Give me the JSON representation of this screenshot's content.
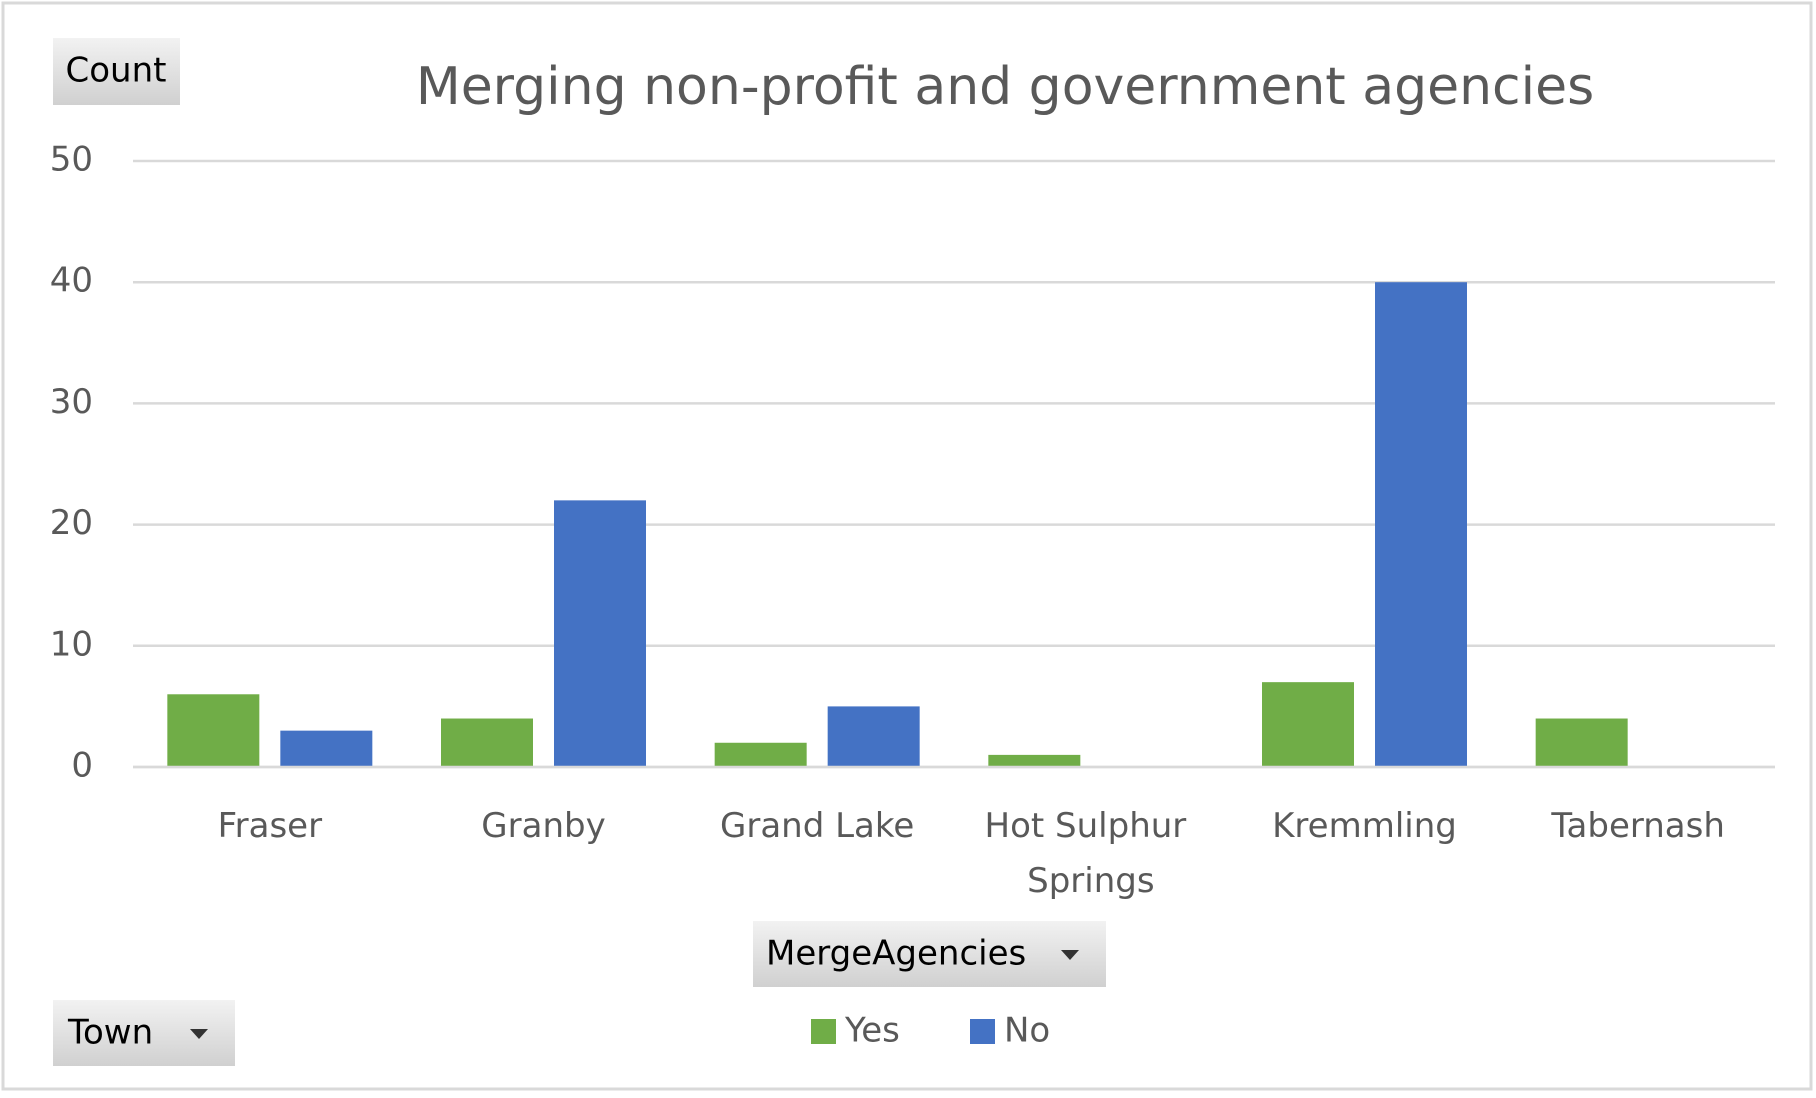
{
  "chart_data": {
    "type": "bar",
    "title": "Merging non-profit and government agencies",
    "y_label": "Count",
    "x_label": "Town",
    "legend_title": "MergeAgencies",
    "categories": [
      "Fraser",
      "Granby",
      "Grand Lake",
      "Hot Sulphur Springs",
      "Kremmling",
      "Tabernash"
    ],
    "series": [
      {
        "name": "Yes",
        "color": "#70ad47",
        "values": [
          6,
          4,
          2,
          1,
          7,
          4
        ]
      },
      {
        "name": "No",
        "color": "#4472c4",
        "values": [
          3,
          22,
          5,
          null,
          40,
          null
        ]
      }
    ],
    "ylim": [
      0,
      50
    ],
    "yticks": [
      0,
      10,
      20,
      30,
      40,
      50
    ],
    "grid": true
  }
}
